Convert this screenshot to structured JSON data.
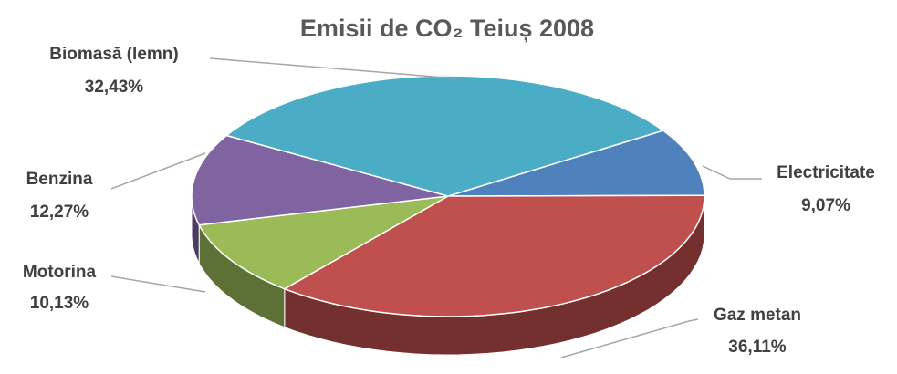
{
  "chart_data": {
    "type": "pie",
    "title": "Emisii de CO₂ Teiuș 2008",
    "categories": [
      "Electricitate",
      "Gaz metan",
      "Motorina",
      "Benzina",
      "Biomasă (lemn)"
    ],
    "values": [
      9.07,
      36.11,
      10.13,
      12.27,
      32.43
    ],
    "value_labels": [
      "9,07%",
      "36,11%",
      "10,13%",
      "12,27%",
      "32,43%"
    ],
    "colors": [
      "#4f81bd",
      "#c0504d",
      "#9bbb59",
      "#8064a2",
      "#4bacc6"
    ]
  }
}
